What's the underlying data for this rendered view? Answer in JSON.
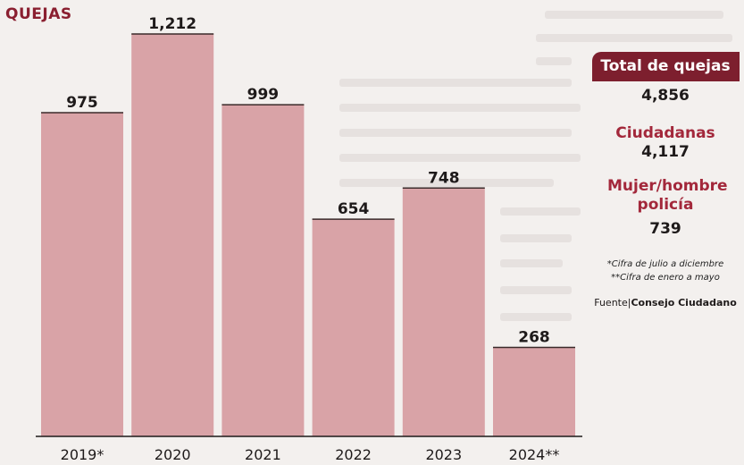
{
  "chart_data": {
    "type": "bar",
    "title": "QUEJAS",
    "categories": [
      "2019*",
      "2020",
      "2021",
      "2022",
      "2023",
      "2024**"
    ],
    "values": [
      975,
      1212,
      999,
      654,
      748,
      268
    ],
    "value_labels": [
      "975",
      "1,212",
      "999",
      "654",
      "748",
      "268"
    ],
    "ylim": [
      0,
      1212
    ],
    "bar_color": "#d9a3a7",
    "grid": false
  },
  "side": {
    "total_label": "Total de quejas",
    "total_value": "4,856",
    "ciudadanas_label": "Ciudadanas",
    "ciudadanas_value": "4,117",
    "policia_label": "Mujer/hombre policía",
    "policia_value": "739",
    "note_1": "*Cifra de julio a diciembre",
    "note_2": "**Cifra de enero a mayo",
    "source_prefix": "Fuente|",
    "source_name": "Consejo Ciudadano"
  },
  "colors": {
    "accent": "#7d1f2e",
    "label_red": "#a3283b",
    "bar": "#d9a3a7"
  }
}
